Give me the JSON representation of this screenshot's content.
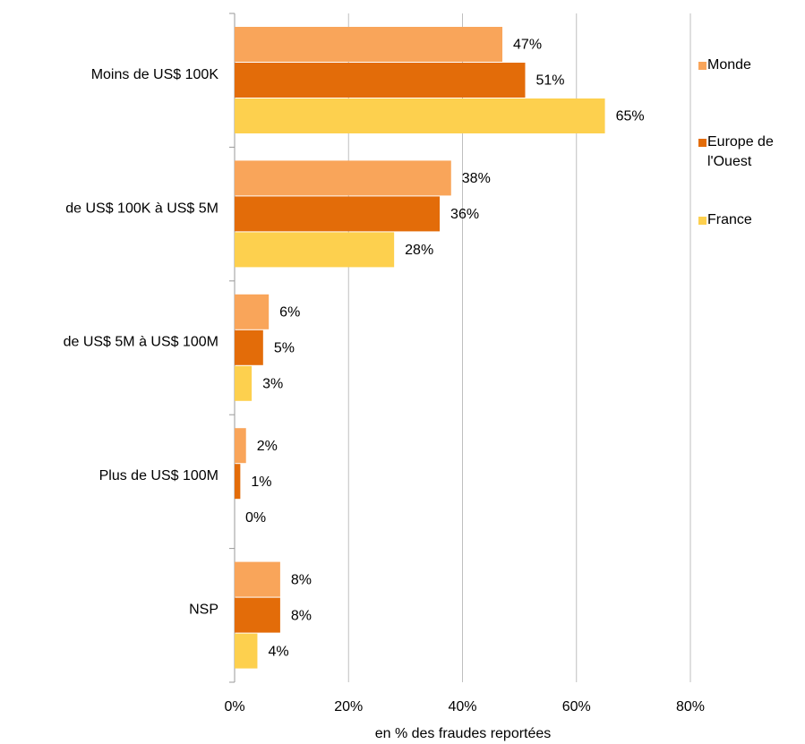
{
  "chart_data": {
    "type": "hbar",
    "xlabel": "en % des fraudes reportées",
    "categories": [
      "Moins de US$ 100K",
      "de US$ 100K à US$ 5M",
      "de US$ 5M à US$ 100M",
      "Plus de US$ 100M",
      "NSP"
    ],
    "series": [
      {
        "name": "Monde",
        "color": "#f9a55a",
        "values": [
          47,
          38,
          6,
          2,
          8
        ],
        "value_labels": [
          "47%",
          "38%",
          "6%",
          "2%",
          "8%"
        ]
      },
      {
        "name": "Europe de l'Ouest",
        "color": "#e36c09",
        "values": [
          51,
          36,
          5,
          1,
          8
        ],
        "value_labels": [
          "51%",
          "36%",
          "5%",
          "1%",
          "8%"
        ]
      },
      {
        "name": "France",
        "color": "#fdd04e",
        "values": [
          65,
          28,
          3,
          0,
          4
        ],
        "value_labels": [
          "65%",
          "28%",
          "3%",
          "0%",
          "4%"
        ]
      }
    ],
    "xlim": [
      0,
      80
    ],
    "xticks": [
      {
        "value": 0,
        "label": "0%"
      },
      {
        "value": 20,
        "label": "20%"
      },
      {
        "value": 40,
        "label": "40%"
      },
      {
        "value": 60,
        "label": "60%"
      },
      {
        "value": 80,
        "label": "80%"
      }
    ],
    "grid": true,
    "legend": "right"
  }
}
